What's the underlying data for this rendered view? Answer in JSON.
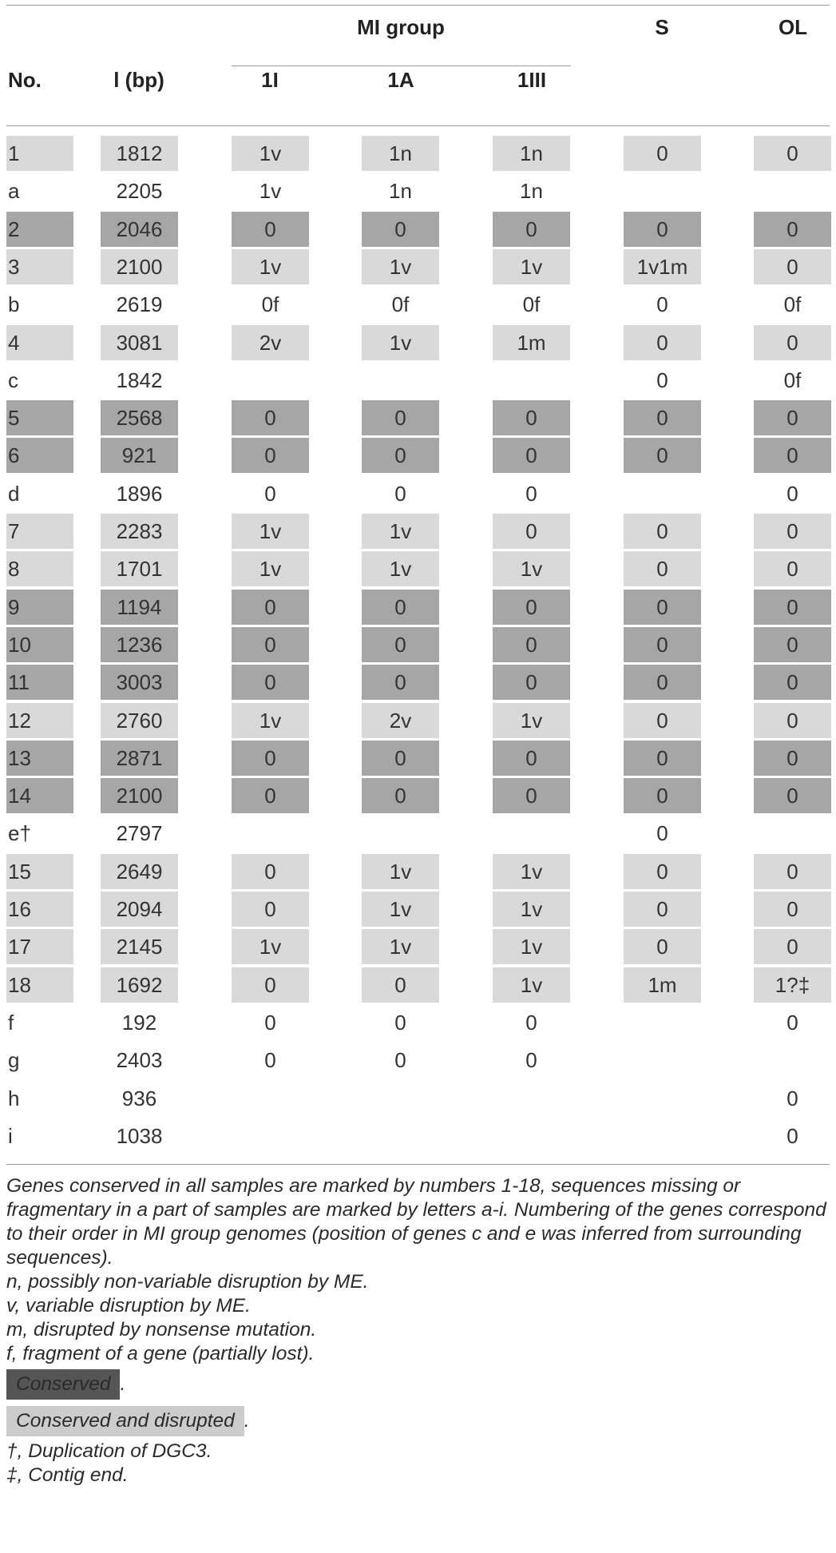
{
  "header": {
    "group_label": "MI group",
    "columns": [
      {
        "key": "no",
        "label": "No."
      },
      {
        "key": "len",
        "label": "l (bp)"
      },
      {
        "key": "g1",
        "label": "1I"
      },
      {
        "key": "g2",
        "label": "1A"
      },
      {
        "key": "g3",
        "label": "1III"
      },
      {
        "key": "s",
        "label": "S"
      },
      {
        "key": "ol",
        "label": "OL"
      }
    ]
  },
  "rows": [
    {
      "no": "1",
      "len": "1812",
      "g1": "1v",
      "g2": "1n",
      "g3": "1n",
      "s": "0",
      "ol": "0",
      "shade": [
        "s1",
        "s1",
        "s1",
        "s1",
        "s1",
        "s1",
        "s1"
      ]
    },
    {
      "no": "a",
      "len": "2205",
      "g1": "1v",
      "g2": "1n",
      "g3": "1n",
      "s": "",
      "ol": "",
      "shade": [
        "",
        "",
        "",
        "",
        "",
        "",
        ""
      ]
    },
    {
      "no": "2",
      "len": "2046",
      "g1": "0",
      "g2": "0",
      "g3": "0",
      "s": "0",
      "ol": "0",
      "shade": [
        "s2",
        "s2",
        "s2",
        "s2",
        "s2",
        "s2",
        "s2"
      ]
    },
    {
      "no": "3",
      "len": "2100",
      "g1": "1v",
      "g2": "1v",
      "g3": "1v",
      "s": "1v1m",
      "ol": "0",
      "shade": [
        "s1",
        "s1",
        "s1",
        "s1",
        "s1",
        "s1",
        "s1"
      ]
    },
    {
      "no": "b",
      "len": "2619",
      "g1": "0f",
      "g2": "0f",
      "g3": "0f",
      "s": "0",
      "ol": "0f",
      "shade": [
        "",
        "",
        "",
        "",
        "",
        "",
        ""
      ]
    },
    {
      "no": "4",
      "len": "3081",
      "g1": "2v",
      "g2": "1v",
      "g3": "1m",
      "s": "0",
      "ol": "0",
      "shade": [
        "s1",
        "s1",
        "s1",
        "s1",
        "s1",
        "s1",
        "s1"
      ]
    },
    {
      "no": "c",
      "len": "1842",
      "g1": "",
      "g2": "",
      "g3": "",
      "s": "0",
      "ol": "0f",
      "shade": [
        "",
        "",
        "",
        "",
        "",
        "",
        ""
      ]
    },
    {
      "no": "5",
      "len": "2568",
      "g1": "0",
      "g2": "0",
      "g3": "0",
      "s": "0",
      "ol": "0",
      "shade": [
        "s2",
        "s2",
        "s2",
        "s2",
        "s2",
        "s2",
        "s2"
      ]
    },
    {
      "no": "6",
      "len": "921",
      "g1": "0",
      "g2": "0",
      "g3": "0",
      "s": "0",
      "ol": "0",
      "shade": [
        "s2",
        "s2",
        "s2",
        "s2",
        "s2",
        "s2",
        "s2"
      ]
    },
    {
      "no": "d",
      "len": "1896",
      "g1": "0",
      "g2": "0",
      "g3": "0",
      "s": "",
      "ol": "0",
      "shade": [
        "",
        "",
        "",
        "",
        "",
        "",
        ""
      ]
    },
    {
      "no": "7",
      "len": "2283",
      "g1": "1v",
      "g2": "1v",
      "g3": "0",
      "s": "0",
      "ol": "0",
      "shade": [
        "s1",
        "s1",
        "s1",
        "s1",
        "s1",
        "s1",
        "s1"
      ]
    },
    {
      "no": "8",
      "len": "1701",
      "g1": "1v",
      "g2": "1v",
      "g3": "1v",
      "s": "0",
      "ol": "0",
      "shade": [
        "s1",
        "s1",
        "s1",
        "s1",
        "s1",
        "s1",
        "s1"
      ]
    },
    {
      "no": "9",
      "len": "1194",
      "g1": "0",
      "g2": "0",
      "g3": "0",
      "s": "0",
      "ol": "0",
      "shade": [
        "s2",
        "s2",
        "s2",
        "s2",
        "s2",
        "s2",
        "s2"
      ]
    },
    {
      "no": "10",
      "len": "1236",
      "g1": "0",
      "g2": "0",
      "g3": "0",
      "s": "0",
      "ol": "0",
      "shade": [
        "s2",
        "s2",
        "s2",
        "s2",
        "s2",
        "s2",
        "s2"
      ]
    },
    {
      "no": "11",
      "len": "3003",
      "g1": "0",
      "g2": "0",
      "g3": "0",
      "s": "0",
      "ol": "0",
      "shade": [
        "s2",
        "s2",
        "s2",
        "s2",
        "s2",
        "s2",
        "s2"
      ]
    },
    {
      "no": "12",
      "len": "2760",
      "g1": "1v",
      "g2": "2v",
      "g3": "1v",
      "s": "0",
      "ol": "0",
      "shade": [
        "s1",
        "s1",
        "s1",
        "s1",
        "s1",
        "s1",
        "s1"
      ]
    },
    {
      "no": "13",
      "len": "2871",
      "g1": "0",
      "g2": "0",
      "g3": "0",
      "s": "0",
      "ol": "0",
      "shade": [
        "s2",
        "s2",
        "s2",
        "s2",
        "s2",
        "s2",
        "s2"
      ]
    },
    {
      "no": "14",
      "len": "2100",
      "g1": "0",
      "g2": "0",
      "g3": "0",
      "s": "0",
      "ol": "0",
      "shade": [
        "s2",
        "s2",
        "s2",
        "s2",
        "s2",
        "s2",
        "s2"
      ]
    },
    {
      "no": "e†",
      "len": "2797",
      "g1": "",
      "g2": "",
      "g3": "",
      "s": "0",
      "ol": "",
      "shade": [
        "",
        "",
        "",
        "",
        "",
        "",
        ""
      ]
    },
    {
      "no": "15",
      "len": "2649",
      "g1": "0",
      "g2": "1v",
      "g3": "1v",
      "s": "0",
      "ol": "0",
      "shade": [
        "s1",
        "s1",
        "s1",
        "s1",
        "s1",
        "s1",
        "s1"
      ]
    },
    {
      "no": "16",
      "len": "2094",
      "g1": "0",
      "g2": "1v",
      "g3": "1v",
      "s": "0",
      "ol": "0",
      "shade": [
        "s1",
        "s1",
        "s1",
        "s1",
        "s1",
        "s1",
        "s1"
      ]
    },
    {
      "no": "17",
      "len": "2145",
      "g1": "1v",
      "g2": "1v",
      "g3": "1v",
      "s": "0",
      "ol": "0",
      "shade": [
        "s1",
        "s1",
        "s1",
        "s1",
        "s1",
        "s1",
        "s1"
      ]
    },
    {
      "no": "18",
      "len": "1692",
      "g1": "0",
      "g2": "0",
      "g3": "1v",
      "s": "1m",
      "ol": "1?‡",
      "shade": [
        "s1",
        "s1",
        "s1",
        "s1",
        "s1",
        "s1",
        "s1"
      ]
    },
    {
      "no": "f",
      "len": "192",
      "g1": "0",
      "g2": "0",
      "g3": "0",
      "s": "",
      "ol": "0",
      "shade": [
        "",
        "",
        "",
        "",
        "",
        "",
        ""
      ]
    },
    {
      "no": "g",
      "len": "2403",
      "g1": "0",
      "g2": "0",
      "g3": "0",
      "s": "",
      "ol": "",
      "shade": [
        "",
        "",
        "",
        "",
        "",
        "",
        ""
      ]
    },
    {
      "no": "h",
      "len": "936",
      "g1": "",
      "g2": "",
      "g3": "",
      "s": "",
      "ol": "0",
      "shade": [
        "",
        "",
        "",
        "",
        "",
        "",
        ""
      ]
    },
    {
      "no": "i",
      "len": "1038",
      "g1": "",
      "g2": "",
      "g3": "",
      "s": "",
      "ol": "0",
      "shade": [
        "",
        "",
        "",
        "",
        "",
        "",
        ""
      ]
    }
  ],
  "footnotes": {
    "intro": "Genes conserved in all samples are marked by numbers 1-18, sequences missing or fragmentary in a part of samples are marked by letters a-i. Numbering of the genes correspond to their order in MI group genomes (position of genes c and e was inferred from surrounding sequences).",
    "n": "n, possibly non-variable disruption by ME.",
    "v": "v, variable disruption by ME.",
    "m": "m, disrupted by nonsense mutation.",
    "f": "f, fragment of a gene (partially lost).",
    "conserved": "Conserved",
    "conserved_disrupted": "Conserved and disrupted",
    "period": ".",
    "dagger": "†, Duplication of DGC3.",
    "ddagger": "‡, Contig end."
  },
  "colors": {
    "conserved_disrupted_fill": "#d9d9d9",
    "conserved_fill": "#a6a6a6",
    "legend_conserved": "#555555",
    "legend_conserved_disrupted": "#cccccc"
  }
}
